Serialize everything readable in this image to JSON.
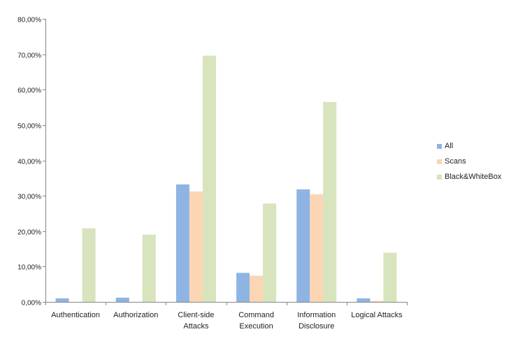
{
  "chart_data": {
    "type": "bar",
    "categories": [
      [
        "Authentication"
      ],
      [
        "Authorization"
      ],
      [
        "Client-side",
        "Attacks"
      ],
      [
        "Command",
        "Execution"
      ],
      [
        "Information",
        "Disclosure"
      ],
      [
        "Logical Attacks"
      ]
    ],
    "series": [
      {
        "name": "All",
        "color": "#8EB4E3",
        "values": [
          1.0,
          1.2,
          33.2,
          8.2,
          31.8,
          1.0
        ]
      },
      {
        "name": "Scans",
        "color": "#FCD5B5",
        "values": [
          0.0,
          0.0,
          31.2,
          7.4,
          30.4,
          0.3
        ]
      },
      {
        "name": "Black&WhiteBox",
        "color": "#D7E4BD",
        "values": [
          20.8,
          19.0,
          69.6,
          27.8,
          56.5,
          13.9
        ]
      }
    ],
    "ylim": [
      0,
      80
    ],
    "yticks": [
      0,
      10,
      20,
      30,
      40,
      50,
      60,
      70,
      80
    ],
    "ytick_labels": [
      "0,00%",
      "10,00%",
      "20,00%",
      "30,00%",
      "40,00%",
      "50,00%",
      "60,00%",
      "70,00%",
      "80,00%"
    ],
    "grid": false,
    "legend_position": "right",
    "title": "",
    "xlabel": "",
    "ylabel": ""
  }
}
